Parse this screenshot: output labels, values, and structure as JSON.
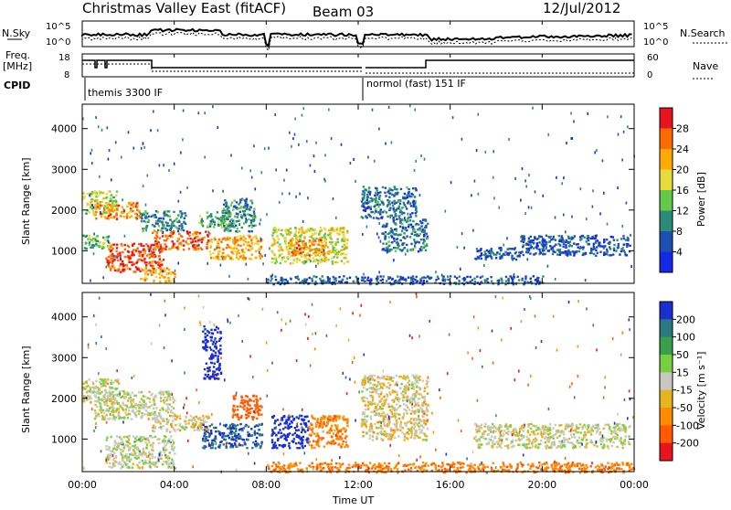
{
  "header": {
    "title": "Christmas Valley East (fitACF)",
    "beam": "Beam 03",
    "date": "12/Jul/2012"
  },
  "top_panels": {
    "nsky_label": "N.Sky",
    "nsky_ticks": [
      "10^5",
      "10^0"
    ],
    "nsearch_label": "N.Search",
    "freq_label_1": "Freq.",
    "freq_label_2": "[MHz]",
    "freq_ticks": [
      "18",
      "8"
    ],
    "nave_label": "Nave",
    "nave_ticks": [
      "60",
      "0"
    ],
    "cpid_label": "CPID",
    "cpid_1": "themis 3300 IF",
    "cpid_2": "normol (fast) 151 IF"
  },
  "axes": {
    "ylabel": "Slant Range [km]",
    "xlabel": "Time UT",
    "x_ticks": [
      "00:00",
      "04:00",
      "08:00",
      "12:00",
      "16:00",
      "20:00",
      "00:00"
    ],
    "y_ticks": [
      "1000",
      "2000",
      "3000",
      "4000"
    ]
  },
  "power_scale": {
    "label": "Power [dB]",
    "ticks": [
      "28",
      "24",
      "20",
      "16",
      "12",
      "8",
      "4"
    ],
    "colors": [
      "#e8141e",
      "#ff6a00",
      "#ffaa00",
      "#e6dc3c",
      "#64c84b",
      "#288c78",
      "#1e50b4",
      "#1428e6"
    ]
  },
  "velocity_scale": {
    "label": "Velocity [m s⁻¹]",
    "ticks": [
      "200",
      "100",
      "50",
      "15",
      "-15",
      "-50",
      "-100",
      "-200"
    ],
    "colors": [
      "#1a2fd0",
      "#2a7a82",
      "#3a9f4a",
      "#78d040",
      "#c8c8c0",
      "#e6b41e",
      "#ff8c00",
      "#ff5a00",
      "#e8141e"
    ]
  },
  "chart_data": [
    {
      "type": "heatmap",
      "name": "power",
      "x_range_hours": [
        0,
        24
      ],
      "y_range_km": [
        200,
        4600
      ],
      "colorbar_range_db": [
        0,
        32
      ],
      "echo_regions": [
        {
          "t_start": 0.0,
          "t_end": 1.5,
          "r_start": 1900,
          "r_end": 2500,
          "db": 16
        },
        {
          "t_start": 0.5,
          "t_end": 2.5,
          "r_start": 1800,
          "r_end": 2200,
          "db": 24
        },
        {
          "t_start": 0.0,
          "t_end": 1.2,
          "r_start": 1050,
          "r_end": 1400,
          "db": 14
        },
        {
          "t_start": 1.0,
          "t_end": 3.5,
          "r_start": 500,
          "r_end": 1200,
          "db": 28
        },
        {
          "t_start": 2.5,
          "t_end": 4.0,
          "r_start": 250,
          "r_end": 600,
          "db": 22
        },
        {
          "t_start": 2.5,
          "t_end": 4.5,
          "r_start": 1500,
          "r_end": 2000,
          "db": 10
        },
        {
          "t_start": 3.0,
          "t_end": 5.5,
          "r_start": 1050,
          "r_end": 1500,
          "db": 26
        },
        {
          "t_start": 5.0,
          "t_end": 6.5,
          "r_start": 1600,
          "r_end": 2000,
          "db": 12
        },
        {
          "t_start": 5.5,
          "t_end": 7.8,
          "r_start": 800,
          "r_end": 1400,
          "db": 22
        },
        {
          "t_start": 6.0,
          "t_end": 7.5,
          "r_start": 1500,
          "r_end": 2300,
          "db": 10
        },
        {
          "t_start": 8.2,
          "t_end": 11.5,
          "r_start": 700,
          "r_end": 1600,
          "db": 18
        },
        {
          "t_start": 9.0,
          "t_end": 10.5,
          "r_start": 900,
          "r_end": 1300,
          "db": 24
        },
        {
          "t_start": 12.1,
          "t_end": 14.5,
          "r_start": 1800,
          "r_end": 2600,
          "db": 8
        },
        {
          "t_start": 13.0,
          "t_end": 15.0,
          "r_start": 1000,
          "r_end": 1800,
          "db": 8
        },
        {
          "t_start": 17.0,
          "t_end": 19.0,
          "r_start": 800,
          "r_end": 1100,
          "db": 6
        },
        {
          "t_start": 19.0,
          "t_end": 23.8,
          "r_start": 900,
          "r_end": 1400,
          "db": 6
        },
        {
          "t_start": 8.0,
          "t_end": 20.0,
          "r_start": 200,
          "r_end": 400,
          "db": 6
        }
      ]
    },
    {
      "type": "heatmap",
      "name": "velocity",
      "x_range_hours": [
        0,
        24
      ],
      "y_range_km": [
        200,
        4600
      ],
      "colorbar_range_ms": [
        -250,
        250
      ],
      "echo_regions": [
        {
          "t_start": 0.0,
          "t_end": 1.6,
          "r_start": 1900,
          "r_end": 2500,
          "v": -5
        },
        {
          "t_start": 0.5,
          "t_end": 4.0,
          "r_start": 1500,
          "r_end": 2200,
          "v": 0
        },
        {
          "t_start": 1.0,
          "t_end": 4.0,
          "r_start": 300,
          "r_end": 1100,
          "v": 5
        },
        {
          "t_start": 3.0,
          "t_end": 5.5,
          "r_start": 1200,
          "r_end": 1600,
          "v": -8
        },
        {
          "t_start": 5.2,
          "t_end": 7.8,
          "r_start": 800,
          "r_end": 1400,
          "v": 150
        },
        {
          "t_start": 5.2,
          "t_end": 6.0,
          "r_start": 2500,
          "r_end": 3800,
          "v": 220
        },
        {
          "t_start": 6.5,
          "t_end": 7.8,
          "r_start": 1500,
          "r_end": 2100,
          "v": -120
        },
        {
          "t_start": 8.2,
          "t_end": 9.8,
          "r_start": 800,
          "r_end": 1600,
          "v": 180
        },
        {
          "t_start": 9.8,
          "t_end": 11.5,
          "r_start": 800,
          "r_end": 1600,
          "v": -60
        },
        {
          "t_start": 12.1,
          "t_end": 15.0,
          "r_start": 1000,
          "r_end": 2600,
          "v": -10
        },
        {
          "t_start": 17.0,
          "t_end": 23.8,
          "r_start": 800,
          "r_end": 1400,
          "v": 0
        },
        {
          "t_start": 8.0,
          "t_end": 24.0,
          "r_start": 200,
          "r_end": 450,
          "v": -70
        }
      ]
    }
  ]
}
